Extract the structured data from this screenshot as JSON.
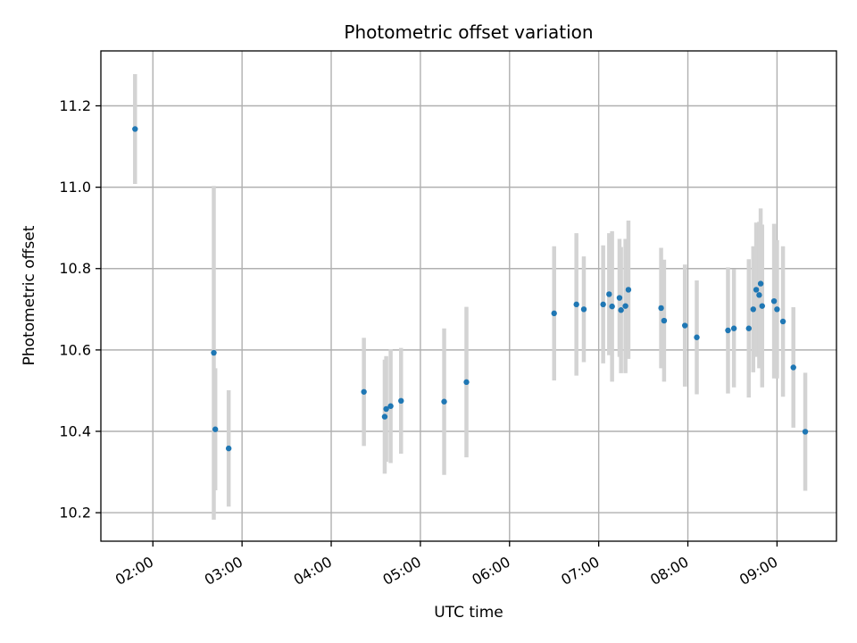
{
  "chart_data": {
    "type": "scatter",
    "title": "Photometric offset variation",
    "xlabel": "UTC time",
    "ylabel": "Photometric offset",
    "xlim": [
      "01:25",
      "09:40"
    ],
    "ylim": [
      10.13,
      11.335
    ],
    "x_ticks": [
      "02:00",
      "03:00",
      "04:00",
      "05:00",
      "06:00",
      "07:00",
      "08:00",
      "09:00"
    ],
    "y_ticks": [
      "10.2",
      "10.4",
      "10.6",
      "10.8",
      "11.0",
      "11.2"
    ],
    "grid": true,
    "series": [
      {
        "color": "#1f77b4",
        "errorbar_color": "#d3d3d3",
        "points": [
          {
            "x": "01:48",
            "y": 11.143,
            "yerr": 0.135
          },
          {
            "x": "02:41",
            "y": 10.593,
            "yerr": 0.41
          },
          {
            "x": "02:42",
            "y": 10.405,
            "yerr": 0.15
          },
          {
            "x": "02:51",
            "y": 10.358,
            "yerr": 0.143
          },
          {
            "x": "04:22",
            "y": 10.497,
            "yerr": 0.133
          },
          {
            "x": "04:36",
            "y": 10.436,
            "yerr": 0.14
          },
          {
            "x": "04:37",
            "y": 10.455,
            "yerr": 0.13
          },
          {
            "x": "04:40",
            "y": 10.462,
            "yerr": 0.14
          },
          {
            "x": "04:47",
            "y": 10.475,
            "yerr": 0.13
          },
          {
            "x": "05:16",
            "y": 10.473,
            "yerr": 0.18
          },
          {
            "x": "05:31",
            "y": 10.521,
            "yerr": 0.185
          },
          {
            "x": "06:30",
            "y": 10.69,
            "yerr": 0.165
          },
          {
            "x": "06:45",
            "y": 10.712,
            "yerr": 0.175
          },
          {
            "x": "06:50",
            "y": 10.7,
            "yerr": 0.13
          },
          {
            "x": "07:03",
            "y": 10.712,
            "yerr": 0.145
          },
          {
            "x": "07:07",
            "y": 10.737,
            "yerr": 0.15
          },
          {
            "x": "07:09",
            "y": 10.707,
            "yerr": 0.185
          },
          {
            "x": "07:14",
            "y": 10.728,
            "yerr": 0.145
          },
          {
            "x": "07:15",
            "y": 10.698,
            "yerr": 0.155
          },
          {
            "x": "07:18",
            "y": 10.708,
            "yerr": 0.165
          },
          {
            "x": "07:20",
            "y": 10.748,
            "yerr": 0.17
          },
          {
            "x": "07:42",
            "y": 10.703,
            "yerr": 0.148
          },
          {
            "x": "07:44",
            "y": 10.672,
            "yerr": 0.15
          },
          {
            "x": "07:58",
            "y": 10.66,
            "yerr": 0.15
          },
          {
            "x": "08:06",
            "y": 10.631,
            "yerr": 0.14
          },
          {
            "x": "08:27",
            "y": 10.648,
            "yerr": 0.155
          },
          {
            "x": "08:31",
            "y": 10.653,
            "yerr": 0.145
          },
          {
            "x": "08:41",
            "y": 10.653,
            "yerr": 0.17
          },
          {
            "x": "08:44",
            "y": 10.7,
            "yerr": 0.155
          },
          {
            "x": "08:46",
            "y": 10.748,
            "yerr": 0.165
          },
          {
            "x": "08:48",
            "y": 10.735,
            "yerr": 0.18
          },
          {
            "x": "08:49",
            "y": 10.763,
            "yerr": 0.185
          },
          {
            "x": "08:50",
            "y": 10.708,
            "yerr": 0.2
          },
          {
            "x": "08:58",
            "y": 10.72,
            "yerr": 0.19
          },
          {
            "x": "09:00",
            "y": 10.7,
            "yerr": 0.17
          },
          {
            "x": "09:04",
            "y": 10.67,
            "yerr": 0.185
          },
          {
            "x": "09:11",
            "y": 10.557,
            "yerr": 0.148
          },
          {
            "x": "09:19",
            "y": 10.399,
            "yerr": 0.145
          }
        ]
      }
    ]
  }
}
